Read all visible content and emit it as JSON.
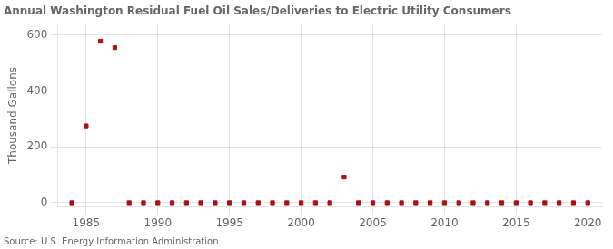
{
  "chart_data": {
    "type": "scatter",
    "title": "Annual Washington Residual Fuel Oil Sales/Deliveries to Electric Utility Consumers",
    "ylabel": "Thousand Gallons",
    "annotations": [
      "Source: U.S. Energy Information Administration"
    ],
    "x": [
      1984,
      1985,
      1986,
      1987,
      1988,
      1989,
      1990,
      1991,
      1992,
      1993,
      1994,
      1995,
      1996,
      1997,
      1998,
      1999,
      2000,
      2001,
      2002,
      2003,
      2004,
      2005,
      2006,
      2007,
      2008,
      2009,
      2010,
      2011,
      2012,
      2013,
      2014,
      2015,
      2016,
      2017,
      2018,
      2019,
      2020
    ],
    "values": [
      0,
      275,
      578,
      555,
      0,
      0,
      0,
      0,
      0,
      0,
      0,
      0,
      0,
      0,
      0,
      0,
      0,
      0,
      0,
      92,
      0,
      0,
      0,
      0,
      0,
      0,
      0,
      0,
      0,
      0,
      0,
      0,
      0,
      0,
      0,
      0,
      0
    ],
    "color": "#aa1111",
    "marker": "square",
    "xlim": [
      1983,
      2021
    ],
    "ylim": [
      -15,
      640
    ],
    "xticks": [
      1985,
      1990,
      1995,
      2000,
      2005,
      2010,
      2015,
      2020
    ],
    "yticks": [
      0,
      200,
      400,
      600
    ],
    "grid": true
  }
}
